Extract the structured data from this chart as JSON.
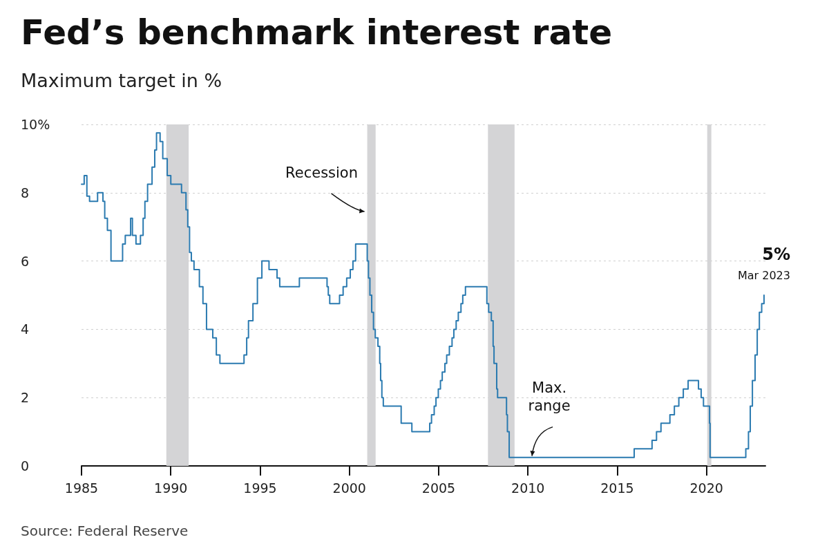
{
  "chart_data": {
    "type": "step",
    "title": "Fed’s benchmark interest rate",
    "subtitle": "Maximum target in %",
    "x": [
      1985.0,
      1985.15,
      1985.3,
      1985.45,
      1985.9,
      1986.2,
      1986.3,
      1986.45,
      1986.55,
      1986.65,
      1987.1,
      1987.3,
      1987.45,
      1987.75,
      1987.85,
      1988.05,
      1988.3,
      1988.45,
      1988.55,
      1988.7,
      1988.95,
      1989.1,
      1989.2,
      1989.4,
      1989.55,
      1989.8,
      1990.0,
      1990.6,
      1990.85,
      1990.95,
      1991.05,
      1991.15,
      1991.3,
      1991.6,
      1991.8,
      1992.0,
      1992.35,
      1992.55,
      1992.75,
      1994.1,
      1994.25,
      1994.35,
      1994.6,
      1994.85,
      1995.1,
      1995.5,
      1995.95,
      1996.1,
      1997.2,
      1998.75,
      1998.82,
      1998.9,
      1999.45,
      1999.65,
      1999.85,
      2000.05,
      2000.2,
      2000.35,
      2001.0,
      2001.07,
      2001.15,
      2001.25,
      2001.35,
      2001.45,
      2001.6,
      2001.7,
      2001.75,
      2001.82,
      2001.9,
      2001.95,
      2002.9,
      2003.5,
      2004.5,
      2004.6,
      2004.75,
      2004.85,
      2004.98,
      2005.1,
      2005.2,
      2005.35,
      2005.45,
      2005.6,
      2005.75,
      2005.85,
      2005.98,
      2006.1,
      2006.25,
      2006.35,
      2006.5,
      2007.7,
      2007.8,
      2007.95,
      2008.05,
      2008.1,
      2008.25,
      2008.3,
      2008.8,
      2008.85,
      2008.95,
      2015.95,
      2016.95,
      2017.2,
      2017.45,
      2017.95,
      2018.2,
      2018.45,
      2018.7,
      2018.97,
      2019.55,
      2019.7,
      2019.83,
      2020.17,
      2020.2,
      2022.2,
      2022.35,
      2022.45,
      2022.57,
      2022.72,
      2022.84,
      2022.96,
      2023.09,
      2023.22
    ],
    "series": [
      {
        "color": "#2a7ab0",
        "values": [
          8.25,
          8.5,
          7.9,
          7.75,
          8.0,
          7.75,
          7.25,
          6.9,
          6.9,
          6.0,
          6.0,
          6.5,
          6.75,
          7.25,
          6.75,
          6.5,
          6.75,
          7.25,
          7.75,
          8.25,
          8.75,
          9.25,
          9.75,
          9.5,
          9.0,
          8.5,
          8.25,
          8.0,
          7.5,
          7.0,
          6.25,
          6.0,
          5.75,
          5.25,
          4.75,
          4.0,
          3.75,
          3.25,
          3.0,
          3.25,
          3.75,
          4.25,
          4.75,
          5.5,
          6.0,
          5.75,
          5.5,
          5.25,
          5.5,
          5.25,
          5.0,
          4.75,
          5.0,
          5.25,
          5.5,
          5.75,
          6.0,
          6.5,
          6.0,
          5.5,
          5.0,
          4.5,
          4.0,
          3.75,
          3.5,
          3.0,
          2.5,
          2.0,
          1.75,
          1.75,
          1.25,
          1.0,
          1.25,
          1.5,
          1.75,
          2.0,
          2.25,
          2.5,
          2.75,
          3.0,
          3.25,
          3.5,
          3.75,
          4.0,
          4.25,
          4.5,
          4.75,
          5.0,
          5.25,
          4.75,
          4.5,
          4.25,
          3.5,
          3.0,
          2.25,
          2.0,
          1.5,
          1.0,
          0.25,
          0.5,
          0.75,
          1.0,
          1.25,
          1.5,
          1.75,
          2.0,
          2.25,
          2.5,
          2.25,
          2.0,
          1.75,
          1.25,
          0.25,
          0.5,
          1.0,
          1.75,
          2.5,
          3.25,
          4.0,
          4.5,
          4.75,
          5.0
        ]
      }
    ],
    "xlim": [
      1985,
      2023.3
    ],
    "xticks": [
      1985,
      1990,
      1995,
      2000,
      2005,
      2010,
      2015,
      2020
    ],
    "ylim": [
      0,
      10
    ],
    "yticks": [
      0,
      2,
      4,
      6,
      8,
      {
        "value": 10,
        "label": "10%"
      }
    ],
    "grid": "y",
    "marker": "none",
    "line_style": "solid",
    "bands": [
      {
        "axis": "x",
        "from": 1989.75,
        "to": 1991.0,
        "color": "#d4d4d6"
      },
      {
        "axis": "x",
        "from": 2001.0,
        "to": 2001.47,
        "color": "#d4d4d6"
      },
      {
        "axis": "x",
        "from": 2007.76,
        "to": 2009.25,
        "color": "#d4d4d6"
      },
      {
        "axis": "x",
        "from": 2020.04,
        "to": 2020.27,
        "color": "#d4d4d6"
      }
    ],
    "annotations": [
      {
        "text": "Recession",
        "x": 2001.0,
        "y": 7.45
      },
      {
        "text": "Max.\nrange",
        "x": 2010.15,
        "y": 0.25
      },
      {
        "text": "5%",
        "x": 2023.22,
        "y": 5.0
      },
      {
        "text": "Mar 2023",
        "x": 2023.22,
        "y": 5.0
      },
      "Source: Federal Reserve"
    ]
  }
}
